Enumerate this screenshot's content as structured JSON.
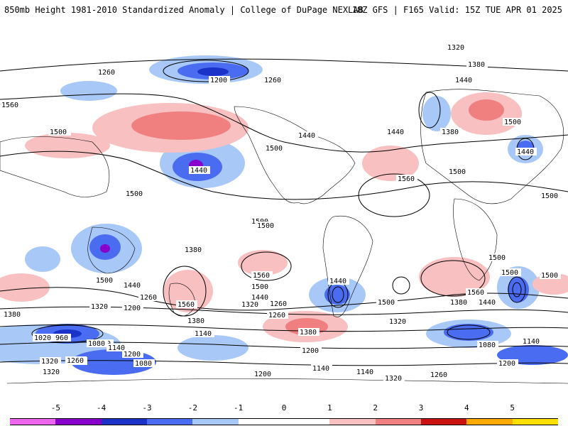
{
  "header": {
    "title_left": "850mb Height 1981-2010 Standardized Anomaly | College of DuPage NEXLAB",
    "title_right": "18Z GFS | F165 Valid: 15Z TUE APR 01 2025"
  },
  "colorbar": {
    "ticks": [
      "-5",
      "-4",
      "-3",
      "-2",
      "-1",
      "0",
      "1",
      "2",
      "3",
      "4",
      "5"
    ],
    "colors": [
      "#ee66ee",
      "#8800cc",
      "#1a32c8",
      "#4a6cf0",
      "#a8c8f8",
      "#ffffff",
      "#ffffff",
      "#f8c0c0",
      "#f08080",
      "#cc1111",
      "#ffaa00",
      "#ffe000"
    ]
  },
  "map": {
    "contour_labels": [
      "1320",
      "1380",
      "1260",
      "1200",
      "1260",
      "1440",
      "1560",
      "1500",
      "1380",
      "1440",
      "1500",
      "1500",
      "1500",
      "1440",
      "1560",
      "1500",
      "1380",
      "1440",
      "1500",
      "1440",
      "1500",
      "1500",
      "1500",
      "1440",
      "1560",
      "1500",
      "1500",
      "1440",
      "1260",
      "1200",
      "1320",
      "1380",
      "1260",
      "1560",
      "1320",
      "1260",
      "1440",
      "1500",
      "1380",
      "1320",
      "1200",
      "1140",
      "1080",
      "1020",
      "960",
      "1140",
      "1200",
      "1260",
      "1320",
      "1080",
      "1200",
      "1140",
      "1320",
      "1200",
      "1260",
      "1080",
      "1140",
      "1200",
      "1560",
      "1380",
      "1440",
      "1500",
      "1260",
      "1320",
      "1200",
      "1140",
      "1380",
      "1500",
      "1440",
      "1500"
    ]
  }
}
